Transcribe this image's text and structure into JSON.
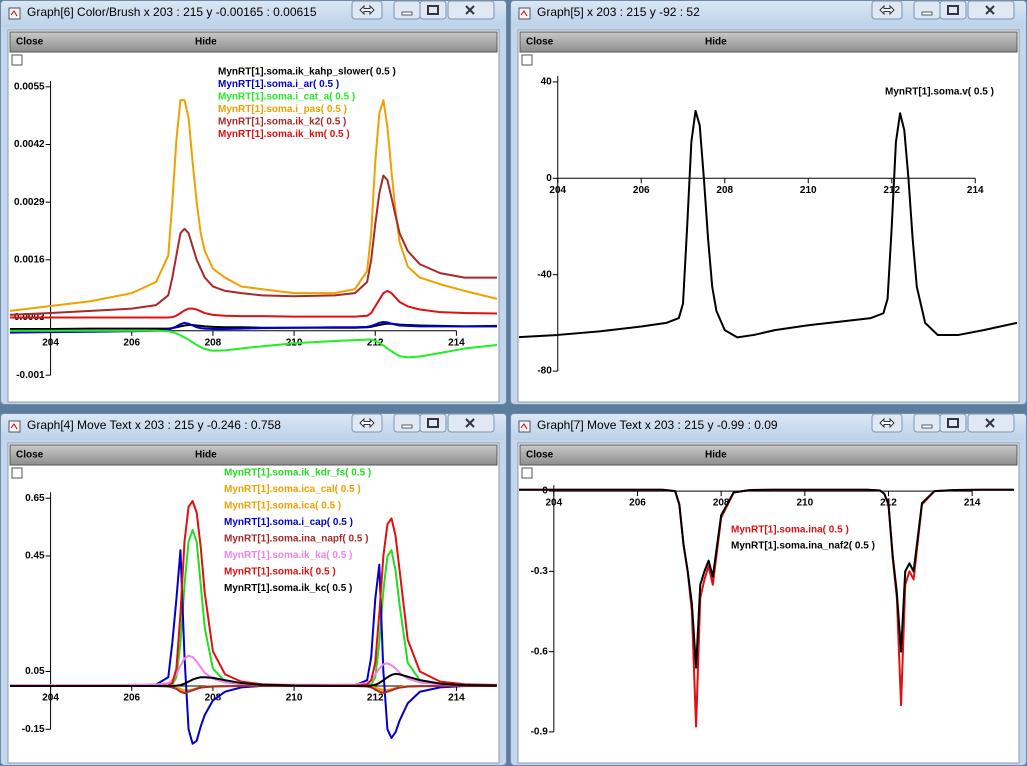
{
  "windows": [
    {
      "title": "Graph[6] Color/Brush x 203 : 215  y -0.00165 : 0.00615",
      "buttons": [
        "Close",
        "Hide"
      ],
      "chart": {
        "type": "line",
        "x": [
          203,
          204,
          205,
          206,
          206.6,
          206.9,
          207,
          207.1,
          207.2,
          207.3,
          207.4,
          207.5,
          207.6,
          207.7,
          207.8,
          208,
          208.3,
          208.7,
          209.2,
          210,
          211,
          211.5,
          211.8,
          211.9,
          212,
          212.1,
          212.2,
          212.3,
          212.4,
          212.5,
          212.6,
          212.8,
          213.1,
          213.6,
          214.2,
          215
        ],
        "xlim": [
          203,
          215
        ],
        "ylim": [
          -0.00165,
          0.00615
        ],
        "xticks": [
          204,
          206,
          208,
          210,
          212,
          214
        ],
        "yticks": [
          -0.001,
          0.0003,
          0.0016,
          0.0029,
          0.0042,
          0.0055
        ],
        "series": [
          {
            "name": "MynRT[1].soma.ik_kahp_slower( 0.5 )",
            "color": "#000000",
            "values": [
              4e-05,
              4e-05,
              5e-05,
              5e-05,
              5e-05,
              5e-05,
              6e-05,
              8e-05,
              0.0001,
              0.00012,
              0.00013,
              0.00013,
              0.00012,
              0.00011,
              0.0001,
              9e-05,
              8e-05,
              8e-05,
              7e-05,
              7e-05,
              7e-05,
              7e-05,
              8e-05,
              9e-05,
              0.00011,
              0.00013,
              0.00015,
              0.00016,
              0.00016,
              0.00015,
              0.00014,
              0.00013,
              0.00012,
              0.00011,
              0.0001,
              0.0001
            ]
          },
          {
            "name": "MynRT[1].soma.i_ar( 0.5 )",
            "color": "#0000cc",
            "values": [
              -4e-05,
              -3e-05,
              -2e-05,
              -1e-05,
              0,
              2e-05,
              6e-05,
              0.0001,
              0.00015,
              0.00018,
              0.00016,
              0.00012,
              8e-05,
              6e-05,
              5e-05,
              4e-05,
              4e-05,
              5e-05,
              6e-05,
              7e-05,
              8e-05,
              8e-05,
              9e-05,
              0.00011,
              0.00014,
              0.00018,
              0.0002,
              0.00019,
              0.00016,
              0.00014,
              0.00012,
              0.00011,
              0.0001,
              0.0001,
              0.0001,
              0.00011
            ]
          },
          {
            "name": "MynRT[1].soma.i_cat_a( 0.5 )",
            "color": "#22ee22",
            "values": [
              0,
              0,
              0,
              0,
              0,
              -1e-05,
              -3e-05,
              -6e-05,
              -0.0001,
              -0.00015,
              -0.0002,
              -0.00026,
              -0.00032,
              -0.00037,
              -0.00041,
              -0.00045,
              -0.00044,
              -0.0004,
              -0.00035,
              -0.00028,
              -0.00023,
              -0.00021,
              -0.0002,
              -0.0002,
              -0.00022,
              -0.00027,
              -0.00033,
              -0.0004,
              -0.00046,
              -0.00052,
              -0.00057,
              -0.0006,
              -0.00058,
              -0.0005,
              -0.0004,
              -0.00032
            ]
          },
          {
            "name": "MynRT[1].soma.i_pas( 0.5 )",
            "color": "#f0a000",
            "values": [
              0.00045,
              0.00056,
              0.00067,
              0.00085,
              0.0011,
              0.0017,
              0.0029,
              0.0043,
              0.0052,
              0.0052,
              0.0048,
              0.0038,
              0.0029,
              0.0022,
              0.0018,
              0.0014,
              0.0012,
              0.001,
              0.00094,
              0.00085,
              0.00085,
              0.00094,
              0.00135,
              0.0022,
              0.0038,
              0.0049,
              0.0052,
              0.0046,
              0.0036,
              0.0027,
              0.002,
              0.00145,
              0.0012,
              0.00105,
              0.0009,
              0.00072
            ]
          },
          {
            "name": "MynRT[1].soma.ik_k2( 0.5 )",
            "color": "#a52a2a",
            "values": [
              0.00036,
              0.0004,
              0.00045,
              0.0005,
              0.00058,
              0.0008,
              0.0012,
              0.0017,
              0.0022,
              0.0023,
              0.0022,
              0.0019,
              0.0016,
              0.0014,
              0.0012,
              0.001,
              0.0009,
              0.00085,
              0.0008,
              0.00078,
              0.0008,
              0.00085,
              0.0011,
              0.0016,
              0.0024,
              0.0031,
              0.0035,
              0.0034,
              0.003,
              0.0026,
              0.0022,
              0.0018,
              0.0015,
              0.0013,
              0.0012,
              0.0012
            ]
          },
          {
            "name": "MynRT[1].soma.ik_km( 0.5 )",
            "color": "#e01010",
            "values": [
              0.0003,
              0.0003,
              0.0003,
              0.0003,
              0.0003,
              0.0003,
              0.00031,
              0.00034,
              0.0004,
              0.00046,
              0.0005,
              0.0005,
              0.00048,
              0.00044,
              0.0004,
              0.00036,
              0.00034,
              0.00033,
              0.00033,
              0.00032,
              0.00032,
              0.00032,
              0.00034,
              0.0004,
              0.00055,
              0.0007,
              0.00085,
              0.0009,
              0.00085,
              0.00075,
              0.00065,
              0.00055,
              0.00048,
              0.00042,
              0.0004,
              0.00039
            ]
          }
        ]
      }
    },
    {
      "title": "Graph[5]  x 203 : 215  y -92 : 52",
      "buttons": [
        "Close",
        "Hide"
      ],
      "chart": {
        "type": "line",
        "x": [
          203,
          204,
          205,
          206,
          206.6,
          206.9,
          207,
          207.1,
          207.2,
          207.3,
          207.4,
          207.5,
          207.6,
          207.7,
          207.8,
          208,
          208.3,
          208.7,
          209.2,
          210,
          211,
          211.5,
          211.8,
          211.9,
          212,
          212.1,
          212.2,
          212.3,
          212.4,
          212.5,
          212.6,
          212.8,
          213.1,
          213.6,
          214.2,
          215
        ],
        "xlim": [
          203,
          215
        ],
        "ylim": [
          -92,
          52
        ],
        "xticks": [
          204,
          206,
          208,
          210,
          212,
          214
        ],
        "yticks": [
          -80,
          -40,
          0,
          40
        ],
        "series": [
          {
            "name": "MynRT[1].soma.v( 0.5 )",
            "color": "#000000",
            "values": [
              -66,
              -65,
              -63.5,
              -61.5,
              -60,
              -58,
              -52,
              -20,
              15,
              28,
              22,
              0,
              -25,
              -45,
              -55,
              -63,
              -66,
              -65,
              -63,
              -61,
              -59,
              -58,
              -56,
              -50,
              -20,
              15,
              27,
              20,
              0,
              -25,
              -45,
              -60,
              -65,
              -65,
              -63,
              -60
            ]
          }
        ]
      }
    },
    {
      "title": "Graph[4] Move Text x 203 : 215  y -0.246 : 0.758",
      "buttons": [
        "Close",
        "Hide"
      ],
      "chart": {
        "type": "line",
        "x": [
          203,
          204,
          205,
          206,
          206.6,
          206.9,
          207,
          207.1,
          207.2,
          207.3,
          207.4,
          207.5,
          207.6,
          207.7,
          207.8,
          208,
          208.3,
          208.7,
          209.2,
          210,
          211,
          211.5,
          211.8,
          211.9,
          212,
          212.1,
          212.2,
          212.3,
          212.4,
          212.5,
          212.6,
          212.8,
          213.1,
          213.6,
          214.2,
          215
        ],
        "xlim": [
          203,
          215
        ],
        "ylim": [
          -0.246,
          0.758
        ],
        "xticks": [
          204,
          206,
          208,
          210,
          212,
          214
        ],
        "yticks": [
          -0.15,
          0.05,
          0.45,
          0.65
        ],
        "series": [
          {
            "name": "MynRT[1].soma.ik_kdr_fs( 0.5 )",
            "color": "#22dd22",
            "values": [
              0,
              0,
              0,
              0,
              0,
              0.001,
              0.005,
              0.03,
              0.15,
              0.35,
              0.5,
              0.54,
              0.5,
              0.35,
              0.2,
              0.06,
              0.015,
              0.005,
              0.002,
              0.001,
              0,
              0,
              0.001,
              0.005,
              0.03,
              0.15,
              0.33,
              0.45,
              0.47,
              0.4,
              0.28,
              0.08,
              0.02,
              0.005,
              0.002,
              0.001
            ]
          },
          {
            "name": "MynRT[1].soma.ica_cal( 0.5 )",
            "color": "#f0a000",
            "values": [
              0,
              0,
              0,
              0,
              0,
              0,
              -0.002,
              -0.005,
              -0.01,
              -0.015,
              -0.015,
              -0.012,
              -0.008,
              -0.005,
              -0.003,
              -0.001,
              0,
              0,
              0,
              0,
              0,
              0,
              0,
              -0.002,
              -0.005,
              -0.01,
              -0.014,
              -0.014,
              -0.011,
              -0.007,
              -0.004,
              -0.001,
              0,
              0,
              0,
              0
            ]
          },
          {
            "name": "MynRT[1].soma.ica( 0.5 )",
            "color": "#f0a000",
            "values": [
              0,
              0,
              0,
              0,
              0,
              0,
              -0.003,
              -0.007,
              -0.012,
              -0.018,
              -0.017,
              -0.014,
              -0.01,
              -0.006,
              -0.004,
              -0.002,
              0,
              0,
              0,
              0,
              0,
              0,
              0,
              -0.003,
              -0.007,
              -0.012,
              -0.016,
              -0.016,
              -0.013,
              -0.008,
              -0.005,
              -0.002,
              0,
              0,
              0,
              0
            ]
          },
          {
            "name": "MynRT[1].soma.i_cap( 0.5 )",
            "color": "#0000cc",
            "values": [
              0,
              0,
              0,
              0.001,
              0.005,
              0.03,
              0.15,
              0.3,
              0.47,
              0.1,
              -0.15,
              -0.2,
              -0.19,
              -0.14,
              -0.1,
              -0.05,
              -0.02,
              -0.005,
              0,
              0,
              0,
              0.002,
              0.02,
              0.1,
              0.3,
              0.42,
              0.05,
              -0.15,
              -0.18,
              -0.16,
              -0.12,
              -0.06,
              -0.02,
              -0.005,
              0,
              0
            ]
          },
          {
            "name": "MynRT[1].soma.ina_napf( 0.5 )",
            "color": "#a52a2a",
            "values": [
              0,
              0,
              0,
              0,
              0,
              -0.002,
              -0.005,
              -0.01,
              -0.02,
              -0.025,
              -0.02,
              -0.015,
              -0.01,
              -0.006,
              -0.004,
              -0.002,
              -0.001,
              0,
              0,
              0,
              0,
              0,
              -0.002,
              -0.005,
              -0.012,
              -0.02,
              -0.024,
              -0.02,
              -0.015,
              -0.01,
              -0.006,
              -0.002,
              -0.001,
              0,
              0,
              0
            ]
          },
          {
            "name": "MynRT[1].soma.ik_ka( 0.5 )",
            "color": "#ee82ee",
            "values": [
              0.003,
              0.003,
              0.003,
              0.004,
              0.005,
              0.01,
              0.02,
              0.04,
              0.07,
              0.095,
              0.105,
              0.1,
              0.085,
              0.065,
              0.045,
              0.025,
              0.012,
              0.007,
              0.005,
              0.004,
              0.004,
              0.005,
              0.01,
              0.02,
              0.04,
              0.06,
              0.075,
              0.078,
              0.072,
              0.06,
              0.045,
              0.025,
              0.012,
              0.006,
              0.005,
              0.004
            ]
          },
          {
            "name": "MynRT[1].soma.ik( 0.5 )",
            "color": "#e01010",
            "values": [
              0,
              0,
              0,
              0,
              0,
              0.002,
              0.01,
              0.06,
              0.25,
              0.5,
              0.62,
              0.64,
              0.6,
              0.48,
              0.32,
              0.12,
              0.04,
              0.015,
              0.006,
              0.002,
              0.001,
              0.001,
              0.005,
              0.02,
              0.08,
              0.25,
              0.45,
              0.56,
              0.58,
              0.52,
              0.4,
              0.16,
              0.05,
              0.015,
              0.006,
              0.003
            ]
          },
          {
            "name": "MynRT[1].soma.ik_kc( 0.5 )",
            "color": "#000000",
            "values": [
              0,
              0,
              0,
              0,
              0,
              0,
              0,
              0.001,
              0.003,
              0.008,
              0.015,
              0.022,
              0.027,
              0.03,
              0.03,
              0.028,
              0.02,
              0.01,
              0.004,
              0.001,
              0,
              0,
              0,
              0.001,
              0.004,
              0.01,
              0.02,
              0.03,
              0.038,
              0.042,
              0.04,
              0.032,
              0.02,
              0.008,
              0.003,
              0.001
            ]
          }
        ]
      }
    },
    {
      "title": "Graph[7] Move Text x 203 : 215  y -0.99 : 0.09",
      "buttons": [
        "Close",
        "Hide"
      ],
      "chart": {
        "type": "line",
        "x": [
          203,
          204,
          205,
          206,
          206.6,
          206.9,
          207,
          207.1,
          207.2,
          207.3,
          207.4,
          207.5,
          207.6,
          207.7,
          207.8,
          208,
          208.3,
          208.7,
          209.2,
          210,
          211,
          211.5,
          211.8,
          211.9,
          212,
          212.1,
          212.2,
          212.3,
          212.4,
          212.5,
          212.6,
          212.8,
          213.1,
          213.6,
          214.2,
          215
        ],
        "xlim": [
          203,
          215
        ],
        "ylim": [
          -0.99,
          0.09
        ],
        "xticks": [
          204,
          206,
          208,
          210,
          212,
          214
        ],
        "yticks": [
          -0.9,
          -0.6,
          -0.3,
          0
        ],
        "series": [
          {
            "name": "MynRT[1].soma.ina( 0.5 )",
            "color": "#e01010",
            "values": [
              0.005,
              0.005,
              0.005,
              0.005,
              0.005,
              0,
              -0.05,
              -0.2,
              -0.3,
              -0.45,
              -0.88,
              -0.4,
              -0.33,
              -0.28,
              -0.35,
              -0.1,
              -0.005,
              0.004,
              0.005,
              0.005,
              0.005,
              0.005,
              0.002,
              -0.01,
              -0.05,
              -0.25,
              -0.4,
              -0.8,
              -0.35,
              -0.3,
              -0.33,
              -0.05,
              0,
              0.004,
              0.005,
              0.005
            ]
          },
          {
            "name": "MynRT[1].soma.ina_naf2( 0.5 )",
            "color": "#000000",
            "values": [
              0.005,
              0.005,
              0.005,
              0.005,
              0.005,
              0,
              -0.05,
              -0.2,
              -0.3,
              -0.42,
              -0.66,
              -0.35,
              -0.3,
              -0.26,
              -0.32,
              -0.09,
              -0.005,
              0.004,
              0.005,
              0.005,
              0.005,
              0.005,
              0.002,
              -0.01,
              -0.05,
              -0.24,
              -0.38,
              -0.6,
              -0.3,
              -0.27,
              -0.3,
              -0.045,
              0,
              0.004,
              0.005,
              0.005
            ]
          }
        ]
      }
    }
  ]
}
